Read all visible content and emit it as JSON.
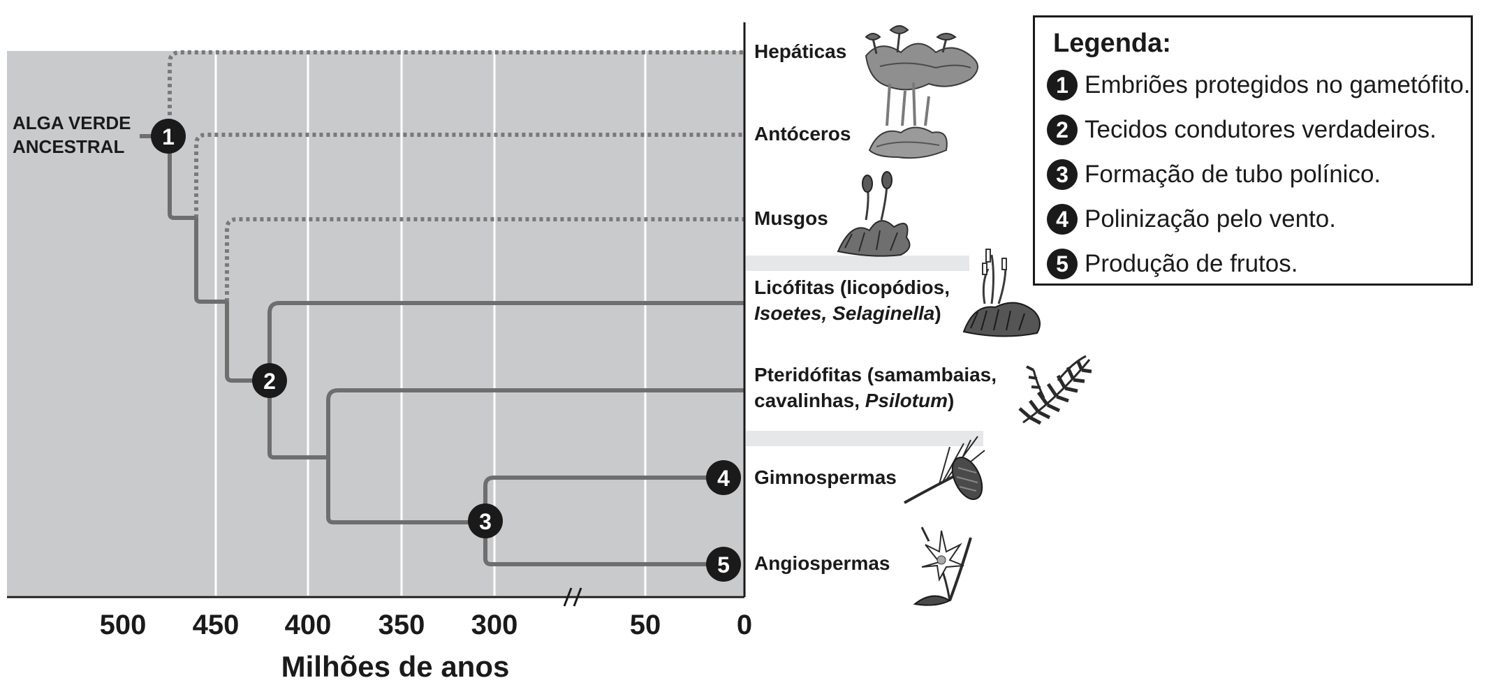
{
  "root_label": [
    "ALGA VERDE",
    "ANCESTRAL"
  ],
  "axis": {
    "title": "Milhões de anos",
    "ticks": [
      "500",
      "450",
      "400",
      "350",
      "300",
      "50",
      "0"
    ]
  },
  "taxa": [
    {
      "id": "hepaticas",
      "lines": [
        [
          {
            "t": "Hepáticas"
          }
        ]
      ]
    },
    {
      "id": "antoceros",
      "lines": [
        [
          {
            "t": "Antóceros"
          }
        ]
      ]
    },
    {
      "id": "musgos",
      "lines": [
        [
          {
            "t": "Musgos"
          }
        ]
      ]
    },
    {
      "id": "licofitas",
      "lines": [
        [
          {
            "t": "Licófitas (licopódios,"
          }
        ],
        [
          {
            "t": "Isoetes, Selaginella",
            "i": true
          },
          {
            "t": ")"
          }
        ]
      ]
    },
    {
      "id": "pteridofitas",
      "lines": [
        [
          {
            "t": "Pteridófitas (samambaias,"
          }
        ],
        [
          {
            "t": "cavalinhas, "
          },
          {
            "t": "Psilotum",
            "i": true
          },
          {
            "t": ")"
          }
        ]
      ]
    },
    {
      "id": "gimnospermas",
      "lines": [
        [
          {
            "t": "Gimnospermas"
          }
        ]
      ]
    },
    {
      "id": "angiospermas",
      "lines": [
        [
          {
            "t": "Angiospermas"
          }
        ]
      ]
    }
  ],
  "node_markers": [
    "1",
    "2",
    "3",
    "4",
    "5"
  ],
  "legend": {
    "title": "Legenda:",
    "items": [
      {
        "num": "1",
        "text": "Embriões protegidos no gametófito."
      },
      {
        "num": "2",
        "text": "Tecidos condutores verdadeiros."
      },
      {
        "num": "3",
        "text": "Formação de tubo polínico."
      },
      {
        "num": "4",
        "text": "Polinização pelo vento."
      },
      {
        "num": "5",
        "text": "Produção de frutos."
      }
    ]
  },
  "colors": {
    "background_panel": "#c9cacc",
    "branch": "#6e6e6e",
    "dotted_branch": "#7a7a7a",
    "marker": "#1a1a1a",
    "separator_band": "#e6e7e8"
  }
}
